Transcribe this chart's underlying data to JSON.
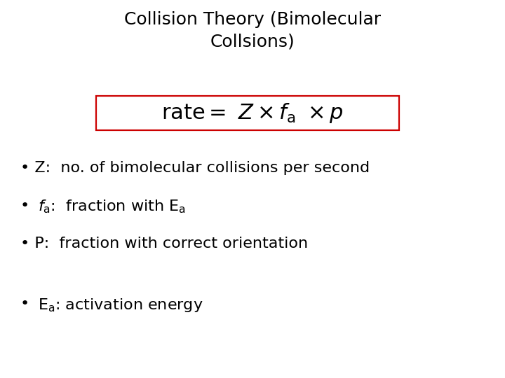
{
  "title_line1": "Collision Theory (Bimolecular",
  "title_line2": "Collsions)",
  "title_fontsize": 18,
  "title_color": "#000000",
  "formula_fontsize": 22,
  "formula_box_color": "#cc0000",
  "bullet1": "Z:  no. of bimolecular collisions per second",
  "bullet3": "P:  fraction with correct orientation",
  "bullet_fontsize": 16,
  "background_color": "#ffffff"
}
